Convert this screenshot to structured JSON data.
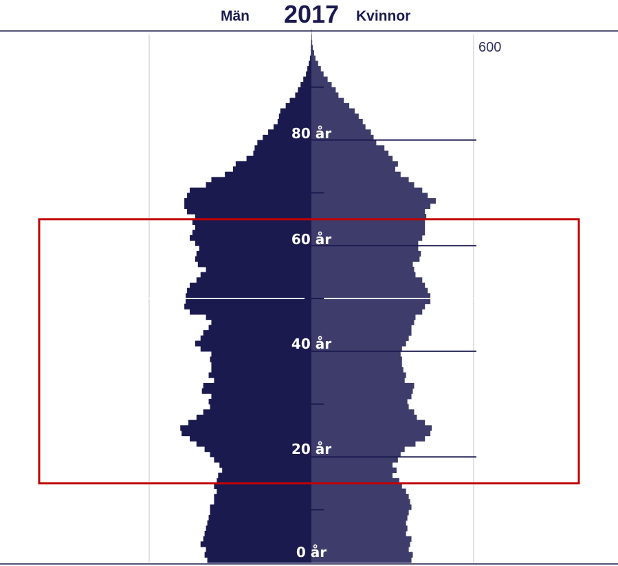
{
  "header": {
    "left_label": "Män",
    "year": "2017",
    "right_label": "Kvinnor"
  },
  "colors": {
    "men": "#1b1a4f",
    "women": "#3e3c6b",
    "highlight": "#c00000",
    "axis": "#1b1a4f"
  },
  "chart_data": {
    "type": "bar",
    "orientation": "horizontal",
    "chart_kind": "population-pyramid",
    "title": "2017",
    "x_ticks": [
      "600"
    ],
    "xlim_each_side": [
      0,
      600
    ],
    "age_range": [
      0,
      100
    ],
    "age_labels": [
      "0 år",
      "20 år",
      "40 år",
      "60 år",
      "80 år"
    ],
    "grid": "vertical lines at ±600",
    "highlight_age_range": [
      15,
      65
    ],
    "series": [
      {
        "name": "Män",
        "side": "left",
        "values": [
          385,
          395,
          390,
          410,
          400,
          395,
          390,
          385,
          380,
          375,
          375,
          360,
          360,
          350,
          360,
          350,
          345,
          330,
          340,
          360,
          375,
          395,
          425,
          450,
          480,
          485,
          455,
          425,
          400,
          375,
          380,
          370,
          405,
          400,
          360,
          380,
          370,
          370,
          375,
          370,
          410,
          430,
          410,
          400,
          380,
          370,
          390,
          450,
          470,
          465,
          465,
          460,
          450,
          425,
          410,
          390,
          420,
          430,
          425,
          415,
          430,
          450,
          440,
          430,
          440,
          430,
          460,
          470,
          470,
          460,
          450,
          390,
          370,
          320,
          290,
          280,
          240,
          215,
          210,
          200,
          180,
          160,
          140,
          125,
          120,
          115,
          95,
          80,
          60,
          50,
          40,
          30,
          20,
          15,
          10,
          5,
          2,
          2,
          1,
          0,
          0
        ]
      },
      {
        "name": "Kvinnor",
        "side": "right",
        "values": [
          370,
          375,
          360,
          365,
          370,
          350,
          355,
          350,
          355,
          360,
          370,
          365,
          360,
          350,
          335,
          325,
          300,
          315,
          300,
          320,
          330,
          345,
          385,
          420,
          440,
          445,
          420,
          390,
          380,
          360,
          355,
          370,
          375,
          380,
          345,
          350,
          340,
          335,
          335,
          330,
          335,
          350,
          360,
          370,
          370,
          380,
          385,
          410,
          420,
          440,
          440,
          430,
          420,
          410,
          385,
          380,
          375,
          400,
          405,
          395,
          395,
          410,
          420,
          420,
          420,
          425,
          420,
          440,
          460,
          430,
          410,
          380,
          360,
          330,
          310,
          320,
          300,
          285,
          270,
          240,
          230,
          220,
          200,
          190,
          175,
          160,
          140,
          120,
          100,
          90,
          75,
          60,
          45,
          35,
          25,
          15,
          10,
          5,
          3,
          2,
          1
        ]
      }
    ]
  }
}
